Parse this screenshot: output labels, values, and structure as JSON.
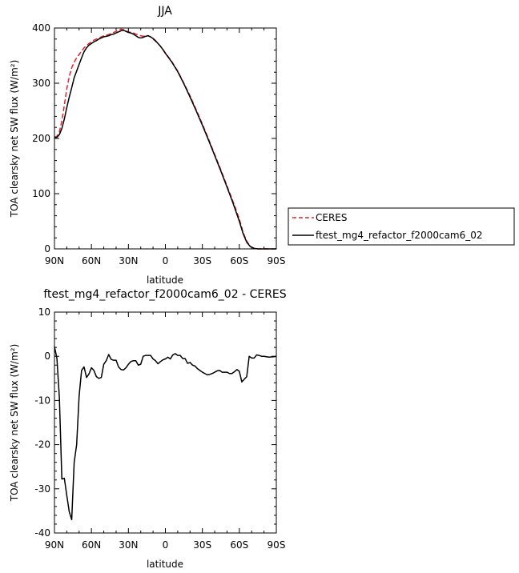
{
  "chart_data": [
    {
      "type": "line",
      "title": "JJA",
      "xlabel": "latitude",
      "ylabel": "TOA clearsky net SW flux (W/m²)",
      "xlim": [
        90,
        -90
      ],
      "ylim": [
        0,
        400
      ],
      "xticks": [
        {
          "value": 90,
          "label": "90N"
        },
        {
          "value": 60,
          "label": "60N"
        },
        {
          "value": 30,
          "label": "30N"
        },
        {
          "value": 0,
          "label": "0"
        },
        {
          "value": -30,
          "label": "30S"
        },
        {
          "value": -60,
          "label": "60S"
        },
        {
          "value": -90,
          "label": "90S"
        }
      ],
      "yticks": [
        {
          "value": 0,
          "label": "0"
        },
        {
          "value": 100,
          "label": "100"
        },
        {
          "value": 200,
          "label": "200"
        },
        {
          "value": 300,
          "label": "300"
        },
        {
          "value": 400,
          "label": "400"
        }
      ],
      "series": [
        {
          "name": "CERES",
          "color": "#e8202a",
          "dash": "dashed",
          "points": [
            [
              90,
              202
            ],
            [
              88,
              204
            ],
            [
              86,
              212
            ],
            [
              84,
              232
            ],
            [
              82,
              260
            ],
            [
              80,
              290
            ],
            [
              78,
              312
            ],
            [
              76,
              328
            ],
            [
              74,
              338
            ],
            [
              72,
              346
            ],
            [
              70,
              352
            ],
            [
              68,
              358
            ],
            [
              66,
              364
            ],
            [
              64,
              368
            ],
            [
              62,
              372
            ],
            [
              60,
              375
            ],
            [
              58,
              378
            ],
            [
              56,
              380
            ],
            [
              54,
              382
            ],
            [
              52,
              384
            ],
            [
              50,
              386
            ],
            [
              48,
              387
            ],
            [
              46,
              388
            ],
            [
              44,
              390
            ],
            [
              42,
              392
            ],
            [
              40,
              394
            ],
            [
              38,
              396
            ],
            [
              36,
              398
            ],
            [
              34,
              397
            ],
            [
              32,
              395
            ],
            [
              30,
              393
            ],
            [
              28,
              392
            ],
            [
              26,
              391
            ],
            [
              24,
              389
            ],
            [
              22,
              387
            ],
            [
              20,
              386
            ],
            [
              18,
              385
            ],
            [
              16,
              386
            ],
            [
              14,
              386
            ],
            [
              12,
              384
            ],
            [
              10,
              380
            ],
            [
              8,
              376
            ],
            [
              6,
              372
            ],
            [
              4,
              367
            ],
            [
              2,
              361
            ],
            [
              0,
              355
            ],
            [
              -5,
              340
            ],
            [
              -10,
              322
            ],
            [
              -15,
              300
            ],
            [
              -20,
              277
            ],
            [
              -25,
              252
            ],
            [
              -30,
              226
            ],
            [
              -35,
              199
            ],
            [
              -40,
              171
            ],
            [
              -45,
              143
            ],
            [
              -50,
              114
            ],
            [
              -55,
              85
            ],
            [
              -60,
              54
            ],
            [
              -63,
              30
            ],
            [
              -66,
              14
            ],
            [
              -69,
              4
            ],
            [
              -72,
              1
            ],
            [
              -75,
              0
            ],
            [
              -80,
              0
            ],
            [
              -90,
              0
            ]
          ]
        },
        {
          "name": "ftest_mg4_refactor_f2000cam6_02",
          "color": "#000000",
          "dash": "solid",
          "points": [
            [
              90,
              202
            ],
            [
              88,
              202
            ],
            [
              86,
              207
            ],
            [
              84,
              218
            ],
            [
              82,
              235
            ],
            [
              80,
              256
            ],
            [
              78,
              275
            ],
            [
              76,
              292
            ],
            [
              74,
              310
            ],
            [
              72,
              322
            ],
            [
              70,
              334
            ],
            [
              68,
              346
            ],
            [
              66,
              357
            ],
            [
              64,
              364
            ],
            [
              62,
              369
            ],
            [
              60,
              372
            ],
            [
              58,
              375
            ],
            [
              56,
              377
            ],
            [
              54,
              380
            ],
            [
              52,
              382
            ],
            [
              50,
              384
            ],
            [
              48,
              385
            ],
            [
              46,
              386
            ],
            [
              44,
              388
            ],
            [
              42,
              389
            ],
            [
              40,
              391
            ],
            [
              38,
              393
            ],
            [
              36,
              395
            ],
            [
              34,
              396
            ],
            [
              32,
              394
            ],
            [
              30,
              392
            ],
            [
              28,
              391
            ],
            [
              26,
              389
            ],
            [
              24,
              386
            ],
            [
              22,
              383
            ],
            [
              20,
              382
            ],
            [
              18,
              383
            ],
            [
              16,
              385
            ],
            [
              14,
              386
            ],
            [
              12,
              384
            ],
            [
              10,
              381
            ],
            [
              8,
              377
            ],
            [
              6,
              372
            ],
            [
              4,
              367
            ],
            [
              2,
              361
            ],
            [
              0,
              354
            ],
            [
              -5,
              339
            ],
            [
              -10,
              321
            ],
            [
              -15,
              299
            ],
            [
              -20,
              275
            ],
            [
              -25,
              250
            ],
            [
              -30,
              224
            ],
            [
              -35,
              197
            ],
            [
              -40,
              169
            ],
            [
              -45,
              141
            ],
            [
              -50,
              112
            ],
            [
              -55,
              82
            ],
            [
              -60,
              50
            ],
            [
              -63,
              28
            ],
            [
              -66,
              12
            ],
            [
              -69,
              4
            ],
            [
              -72,
              1
            ],
            [
              -75,
              0
            ],
            [
              -80,
              0
            ],
            [
              -90,
              0
            ]
          ]
        }
      ]
    },
    {
      "type": "line",
      "title": "ftest_mg4_refactor_f2000cam6_02 - CERES",
      "xlabel": "latitude",
      "ylabel": "TOA clearsky net SW flux (W/m²)",
      "xlim": [
        90,
        -90
      ],
      "ylim": [
        -40,
        10
      ],
      "xticks": [
        {
          "value": 90,
          "label": "90N"
        },
        {
          "value": 60,
          "label": "60N"
        },
        {
          "value": 30,
          "label": "30N"
        },
        {
          "value": 0,
          "label": "0"
        },
        {
          "value": -30,
          "label": "30S"
        },
        {
          "value": -60,
          "label": "60S"
        },
        {
          "value": -90,
          "label": "90S"
        }
      ],
      "yticks": [
        {
          "value": -40,
          "label": "-40"
        },
        {
          "value": -30,
          "label": "-30"
        },
        {
          "value": -20,
          "label": "-20"
        },
        {
          "value": -10,
          "label": "-10"
        },
        {
          "value": 0,
          "label": "0"
        },
        {
          "value": 10,
          "label": "10"
        }
      ],
      "series": [
        {
          "name": "",
          "color": "#000000",
          "dash": "solid",
          "points": [
            [
              90,
              2.2
            ],
            [
              88,
              -0.5
            ],
            [
              86,
              -9.5
            ],
            [
              84,
              -27.8
            ],
            [
              82,
              -27.6
            ],
            [
              80,
              -31.5
            ],
            [
              78,
              -35.2
            ],
            [
              76,
              -37.0
            ],
            [
              74,
              -24.0
            ],
            [
              72,
              -20.0
            ],
            [
              70,
              -9.0
            ],
            [
              68,
              -3.2
            ],
            [
              66,
              -2.4
            ],
            [
              64,
              -4.8
            ],
            [
              62,
              -4.0
            ],
            [
              60,
              -2.6
            ],
            [
              58,
              -3.2
            ],
            [
              56,
              -4.6
            ],
            [
              54,
              -5.0
            ],
            [
              52,
              -4.8
            ],
            [
              50,
              -1.8
            ],
            [
              48,
              -1.0
            ],
            [
              46,
              0.4
            ],
            [
              44,
              -0.7
            ],
            [
              42,
              -0.9
            ],
            [
              40,
              -0.9
            ],
            [
              38,
              -2.4
            ],
            [
              36,
              -3.0
            ],
            [
              34,
              -3.1
            ],
            [
              32,
              -2.6
            ],
            [
              30,
              -1.8
            ],
            [
              28,
              -1.2
            ],
            [
              26,
              -1.0
            ],
            [
              24,
              -1.0
            ],
            [
              22,
              -2.0
            ],
            [
              20,
              -1.8
            ],
            [
              18,
              0.0
            ],
            [
              16,
              0.2
            ],
            [
              14,
              0.2
            ],
            [
              12,
              0.2
            ],
            [
              10,
              -0.6
            ],
            [
              8,
              -1.0
            ],
            [
              6,
              -1.7
            ],
            [
              4,
              -1.2
            ],
            [
              2,
              -0.8
            ],
            [
              0,
              -0.6
            ],
            [
              -2,
              -0.2
            ],
            [
              -4,
              -0.6
            ],
            [
              -6,
              0.3
            ],
            [
              -8,
              0.6
            ],
            [
              -10,
              0.2
            ],
            [
              -12,
              0.2
            ],
            [
              -14,
              -0.5
            ],
            [
              -16,
              -0.5
            ],
            [
              -18,
              -1.6
            ],
            [
              -20,
              -1.4
            ],
            [
              -22,
              -2.0
            ],
            [
              -24,
              -2.2
            ],
            [
              -26,
              -2.8
            ],
            [
              -28,
              -3.2
            ],
            [
              -30,
              -3.6
            ],
            [
              -32,
              -3.9
            ],
            [
              -34,
              -4.2
            ],
            [
              -36,
              -4.1
            ],
            [
              -38,
              -3.9
            ],
            [
              -40,
              -3.6
            ],
            [
              -42,
              -3.3
            ],
            [
              -44,
              -3.2
            ],
            [
              -46,
              -3.6
            ],
            [
              -48,
              -3.6
            ],
            [
              -50,
              -3.6
            ],
            [
              -52,
              -3.9
            ],
            [
              -54,
              -3.9
            ],
            [
              -56,
              -3.5
            ],
            [
              -58,
              -3.0
            ],
            [
              -60,
              -3.4
            ],
            [
              -62,
              -5.8
            ],
            [
              -64,
              -5.2
            ],
            [
              -66,
              -4.6
            ],
            [
              -68,
              0.0
            ],
            [
              -70,
              -0.4
            ],
            [
              -72,
              -0.4
            ],
            [
              -74,
              0.3
            ],
            [
              -76,
              0.2
            ],
            [
              -78,
              0.0
            ],
            [
              -80,
              0.0
            ],
            [
              -84,
              -0.2
            ],
            [
              -88,
              -0.1
            ],
            [
              -90,
              0.0
            ]
          ]
        }
      ]
    }
  ]
}
